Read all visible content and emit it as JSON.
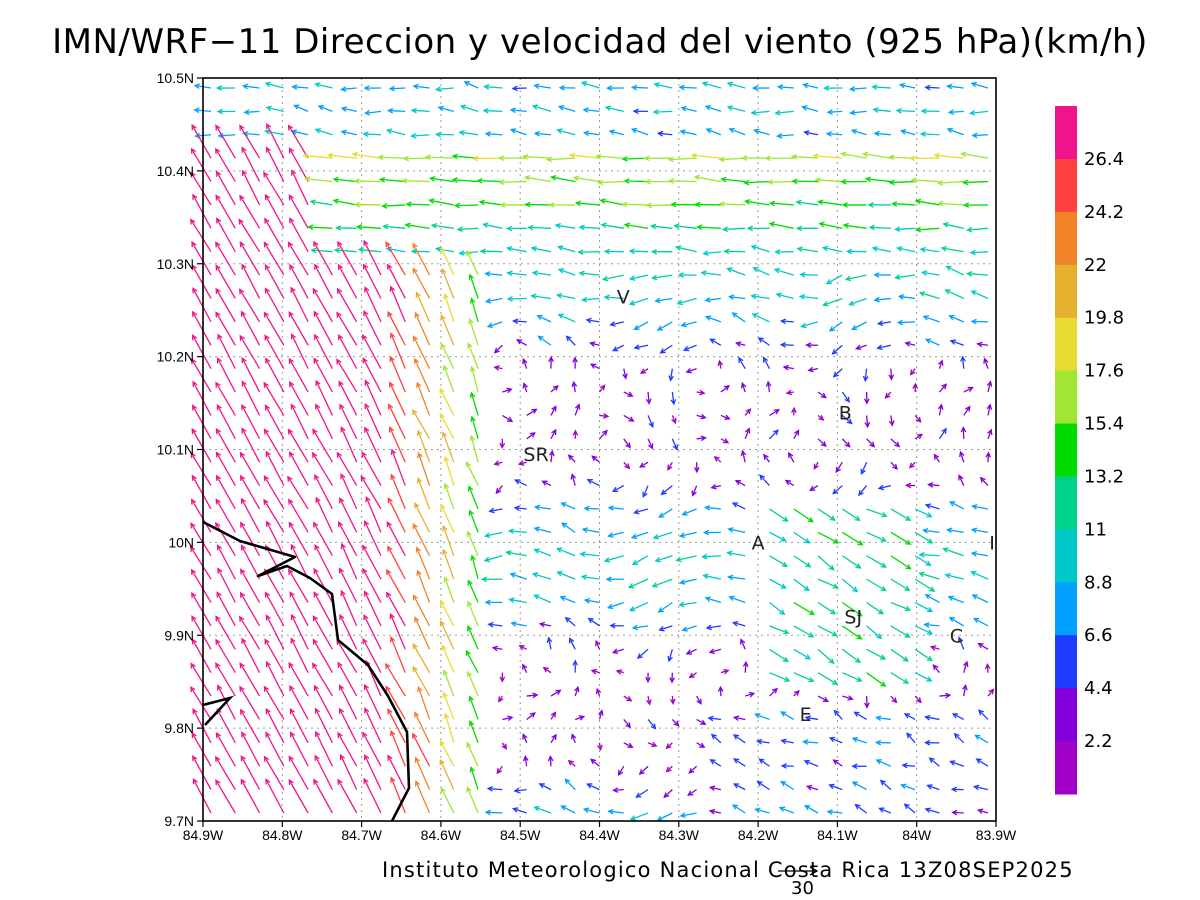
{
  "title": "IMN/WRF−11 Direccion y velocidad del viento (925 hPa)(km/h)",
  "footer": "Instituto Meteorologico Nacional Costa Rica  13Z08SEP2025",
  "reference_vector_label": "30",
  "lat_labels": [
    "10.5N",
    "10.4N",
    "10.3N",
    "10.2N",
    "10.1N",
    "10N",
    "9.9N",
    "9.8N",
    "9.7N"
  ],
  "lon_labels": [
    "84.9W",
    "84.8W",
    "84.7W",
    "84.6W",
    "84.5W",
    "84.4W",
    "84.3W",
    "84.2W",
    "84.1W",
    "84W",
    "83.9W"
  ],
  "colorbar_labels": [
    "26.4",
    "24.2",
    "22",
    "19.8",
    "17.6",
    "15.4",
    "13.2",
    "11",
    "8.8",
    "6.6",
    "4.4",
    "2.2"
  ],
  "colorbar_colors": [
    "#f0148c",
    "#ff4040",
    "#f08228",
    "#e6af2d",
    "#e6dc32",
    "#a0e632",
    "#00dc00",
    "#00d28c",
    "#00c8c8",
    "#00a0ff",
    "#1e3cff",
    "#8200dc",
    "#a000c8"
  ],
  "places": [
    {
      "label": "V"
    },
    {
      "label": "B"
    },
    {
      "label": "SR"
    },
    {
      "label": "A"
    },
    {
      "label": "I"
    },
    {
      "label": "SJ"
    },
    {
      "label": "C"
    },
    {
      "label": "E"
    }
  ],
  "chart_data": {
    "type": "vector-field",
    "variable": "Direccion y velocidad del viento (925 hPa)",
    "units": "km/h",
    "xlim": [
      -84.9,
      -83.9
    ],
    "ylim": [
      9.7,
      10.5
    ],
    "grid": true,
    "color_scale_kmh": [
      2.2,
      4.4,
      6.6,
      8.8,
      11,
      13.2,
      15.4,
      17.6,
      19.8,
      22,
      24.2,
      26.4
    ],
    "reference_vector_kmh": 30,
    "valid_time": "13Z08SEP2025"
  }
}
